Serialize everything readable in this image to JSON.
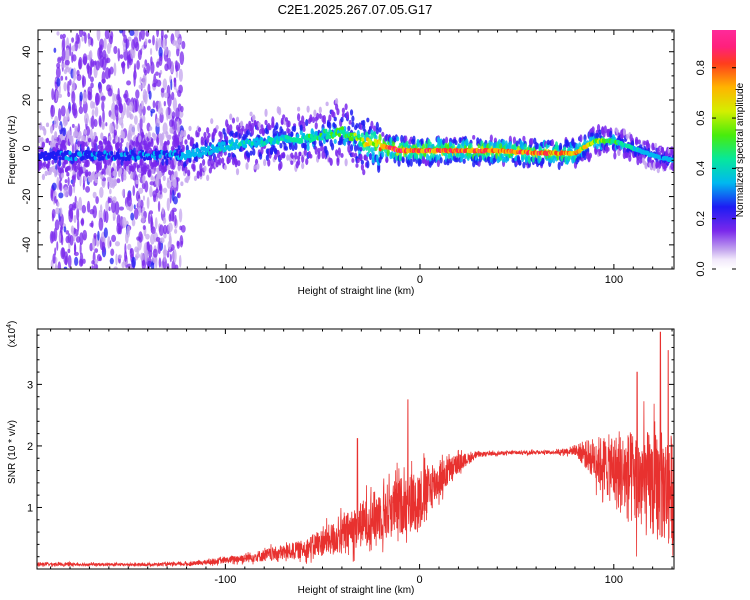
{
  "title": "C2E1.2025.267.07.05.G17",
  "chart_data": [
    {
      "type": "heatmap",
      "xlabel": "Height of straight line (km)",
      "ylabel": "Frequency (Hz)",
      "xlim": [
        -197,
        131
      ],
      "ylim": [
        -50,
        49
      ],
      "xticks": [
        -100,
        0,
        100
      ],
      "xtick_labels": [
        "-100",
        "0",
        "100"
      ],
      "yticks": [
        -40,
        -20,
        0,
        20,
        40
      ],
      "ytick_labels": [
        "-40",
        "-20",
        "0",
        "20",
        "40"
      ],
      "ridge": {
        "x": [
          -197,
          -180,
          -160,
          -140,
          -120,
          -100,
          -80,
          -60,
          -40,
          -30,
          -20,
          -10,
          0,
          20,
          40,
          60,
          80,
          90,
          100,
          110,
          120,
          131
        ],
        "freq": [
          -3,
          -3,
          -3,
          -3,
          -3,
          1,
          3,
          4,
          7,
          3,
          1,
          -1,
          -1,
          -1,
          -1,
          -2,
          -2,
          3,
          3,
          0,
          -3,
          -5
        ],
        "amplitude": [
          0.2,
          0.25,
          0.25,
          0.25,
          0.3,
          0.35,
          0.35,
          0.4,
          0.45,
          0.55,
          0.75,
          0.85,
          0.8,
          0.8,
          0.8,
          0.8,
          0.7,
          0.55,
          0.45,
          0.35,
          0.3,
          0.3
        ]
      },
      "noise_region_x": [
        -190,
        -122
      ],
      "colorbar": {
        "label": "Normalized spectral amplitude",
        "range": [
          0,
          0.95
        ],
        "ticks": [
          0.0,
          0.2,
          0.4,
          0.6,
          0.8
        ],
        "tick_labels": [
          "0.0",
          "0.2",
          "0.4",
          "0.6",
          "0.8"
        ]
      }
    },
    {
      "type": "line",
      "xlabel": "Height of straight line (km)",
      "ylabel": "SNR (10 * v/v)",
      "scale_label": "(x10",
      "scale_exponent": "4",
      "scale_suffix": ")",
      "xlim": [
        -197,
        131
      ],
      "ylim": [
        0,
        3.9
      ],
      "xticks": [
        -100,
        0,
        100
      ],
      "xtick_labels": [
        "-100",
        "0",
        "100"
      ],
      "yticks": [
        1,
        2,
        3
      ],
      "ytick_labels": [
        "1",
        "2",
        "3"
      ],
      "series": [
        {
          "name": "SNR",
          "color": "#e8312f",
          "x": [
            -197,
            -150,
            -120,
            -100,
            -80,
            -60,
            -40,
            -20,
            0,
            10,
            20,
            30,
            40,
            60,
            70,
            80,
            90,
            100,
            110,
            120,
            131
          ],
          "mean": [
            0.08,
            0.07,
            0.08,
            0.14,
            0.22,
            0.32,
            0.55,
            0.9,
            1.15,
            1.45,
            1.72,
            1.86,
            1.88,
            1.9,
            1.9,
            1.93,
            1.8,
            1.6,
            1.45,
            1.35,
            1.3
          ],
          "spread": [
            0.03,
            0.02,
            0.03,
            0.05,
            0.1,
            0.15,
            0.3,
            0.45,
            0.5,
            0.3,
            0.15,
            0.04,
            0.03,
            0.03,
            0.03,
            0.08,
            0.35,
            0.6,
            0.8,
            0.9,
            0.9
          ],
          "peaks": [
            {
              "x": -6,
              "y": 2.75
            },
            {
              "x": -32,
              "y": 2.12
            },
            {
              "x": 124,
              "y": 3.85
            },
            {
              "x": 112,
              "y": 3.2
            },
            {
              "x": 128,
              "y": 3.55
            }
          ]
        }
      ]
    }
  ]
}
